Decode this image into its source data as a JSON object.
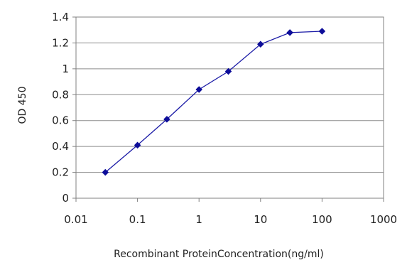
{
  "chart_data": {
    "type": "line",
    "title": "",
    "xlabel": "Recombinant ProteinConcentration(ng/ml)",
    "ylabel": "OD 450",
    "x_scale": "log",
    "xlim": [
      0.01,
      1000
    ],
    "ylim": [
      0,
      1.4
    ],
    "x_ticks": [
      0.01,
      0.1,
      1,
      10,
      100,
      1000
    ],
    "x_tick_labels": [
      "0.01",
      "0.1",
      "1",
      "10",
      "100",
      "1000"
    ],
    "y_ticks": [
      0,
      0.2,
      0.4,
      0.6,
      0.8,
      1,
      1.2,
      1.4
    ],
    "y_tick_labels": [
      "0",
      "0.2",
      "0.4",
      "0.6",
      "0.8",
      "1",
      "1.2",
      "1.4"
    ],
    "grid": "horizontal",
    "legend": "none",
    "series": [
      {
        "color": "#1a1aa6",
        "marker": "diamond",
        "x": [
          0.03,
          0.1,
          0.3,
          1,
          3,
          10,
          30,
          100
        ],
        "y": [
          0.2,
          0.41,
          0.61,
          0.84,
          0.98,
          1.19,
          1.28,
          1.29
        ]
      }
    ]
  }
}
